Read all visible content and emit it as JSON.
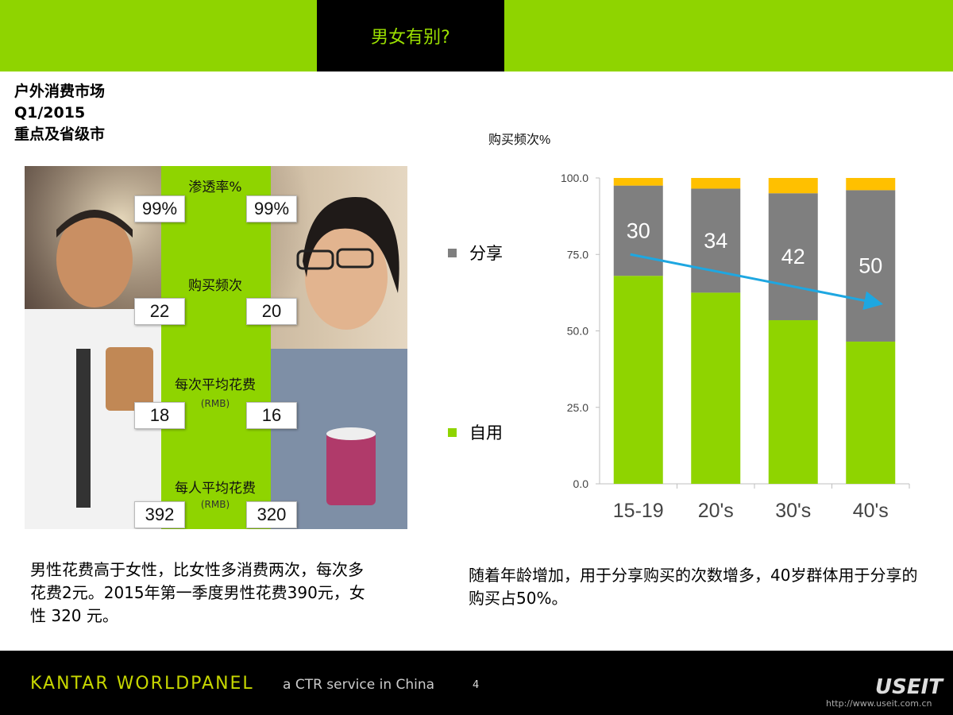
{
  "header": {
    "title": "男女有别?"
  },
  "meta": {
    "line1": "户外消费市场",
    "line2": "Q1/2015",
    "line3": "重点及省级市"
  },
  "metrics": {
    "penetration": {
      "label": "渗透率%",
      "male": "99%",
      "female": "99%"
    },
    "frequency": {
      "label": "购买频次",
      "male": "22",
      "female": "20"
    },
    "spend_per_trip": {
      "label": "每次平均花费",
      "unit": "(RMB)",
      "male": "18",
      "female": "16"
    },
    "spend_per_buyer": {
      "label": "每人平均花费",
      "unit": "(RMB)",
      "male": "392",
      "female": "320"
    }
  },
  "captions": {
    "left": "男性花费高于女性，比女性多消费两次，每次多花费2元。2015年第一季度男性花费390元，女性 320 元。",
    "right": "随着年龄增加，用于分享购买的次数增多，40岁群体用于分享的购买占50%。"
  },
  "legend": {
    "share": "分享",
    "self": "自用"
  },
  "chart_data": {
    "type": "bar",
    "stacked": true,
    "title": "购买频次%",
    "categories": [
      "15-19",
      "20's",
      "30's",
      "40's"
    ],
    "series": [
      {
        "name": "自用",
        "values": [
          68,
          62.5,
          53.5,
          46.5
        ]
      },
      {
        "name": "分享",
        "values": [
          29.5,
          34,
          41.5,
          49.5
        ]
      },
      {
        "values": [
          2.5,
          3.5,
          5,
          4
        ]
      }
    ],
    "data_labels": [
      "30",
      "34",
      "42",
      "50"
    ],
    "y_ticks": [
      "0.0",
      "25.0",
      "50.0",
      "75.0",
      "100.0"
    ],
    "ylim": [
      0,
      100
    ],
    "colors": {
      "self": "#8fd400",
      "share": "#7f7f7f",
      "other": "#ffc000",
      "trend": "#1ea7e1"
    },
    "trend_arrow": {
      "from": [
        0,
        75
      ],
      "to": [
        3,
        59
      ]
    }
  },
  "footer": {
    "brand": "KANTAR WORLDPANEL",
    "tagline": "a CTR service in China",
    "page": "4",
    "watermark": "USEIT",
    "url": "http://www.useit.com.cn"
  }
}
